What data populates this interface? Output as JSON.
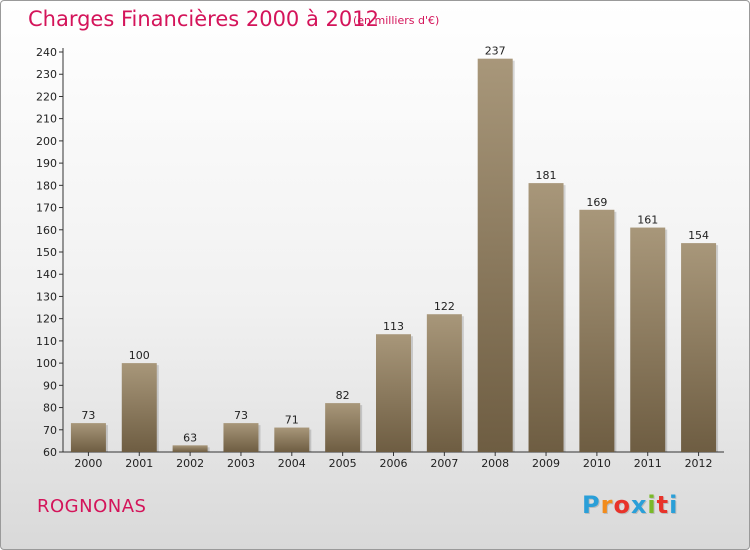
{
  "chart_data": {
    "type": "bar",
    "title": "Charges Financières 2000 à 2012",
    "subtitle": "(en milliers d'€)",
    "categories": [
      "2000",
      "2001",
      "2002",
      "2003",
      "2004",
      "2005",
      "2006",
      "2007",
      "2008",
      "2009",
      "2010",
      "2011",
      "2012"
    ],
    "values": [
      73,
      100,
      63,
      73,
      71,
      82,
      113,
      122,
      237,
      181,
      169,
      161,
      154
    ],
    "ylim": [
      60,
      240
    ],
    "yticks": [
      60,
      70,
      80,
      90,
      100,
      110,
      120,
      130,
      140,
      150,
      160,
      170,
      180,
      190,
      200,
      210,
      220,
      230,
      240
    ],
    "grid": false,
    "bar_color_top": "#a8977a",
    "bar_color_bottom": "#6e5d42"
  },
  "place_name": "ROGNONAS",
  "logo": {
    "letters": [
      "P",
      "r",
      "o",
      "x",
      "i",
      "t",
      "i"
    ],
    "colors": [
      "#2a9fd8",
      "#f28c1c",
      "#e8332a",
      "#2a9fd8",
      "#7ab929",
      "#e8332a",
      "#2a9fd8"
    ]
  }
}
